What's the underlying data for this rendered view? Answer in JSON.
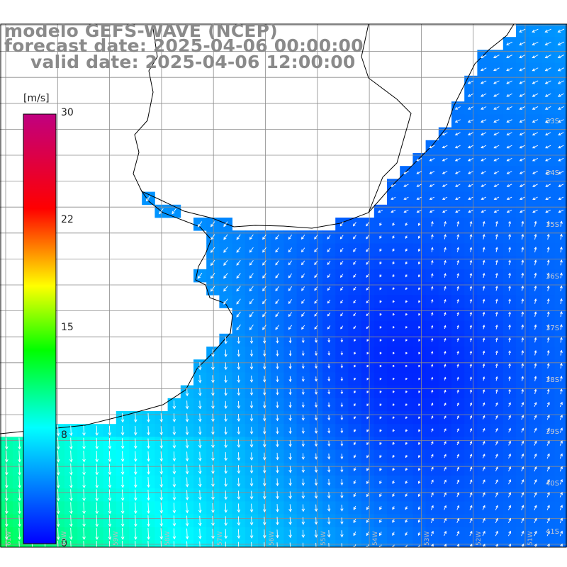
{
  "header": {
    "line1": "modelo GEFS-WAVE (NCEP)",
    "line2": "forecast date: 2025-04-06 00:00:00",
    "line3": "valid date: 2025-04-06 12:00:00"
  },
  "colorbar": {
    "unit": "[m/s]",
    "ticks": [
      "30",
      "22",
      "15",
      "8",
      "0"
    ],
    "range": [
      0,
      30
    ],
    "colors": [
      "#0000ff",
      "#00ffff",
      "#00ff00",
      "#ffff00",
      "#ff0000",
      "#c00080"
    ]
  },
  "lat_labels": [
    "33S",
    "34S",
    "35S",
    "36S",
    "37S",
    "38S",
    "39S",
    "40S",
    "41S"
  ],
  "lon_labels": [
    "61W",
    "60W",
    "59W",
    "58W",
    "57W",
    "56W",
    "55W",
    "54W",
    "53W",
    "52W",
    "51W"
  ],
  "map": {
    "field": "wind speed",
    "ocean_low_color": "#0033ff",
    "land_color": "#ffffff",
    "coast_color": "#000000",
    "grid_color": "#8c8c8c",
    "arrow_color": "#ffffff"
  }
}
